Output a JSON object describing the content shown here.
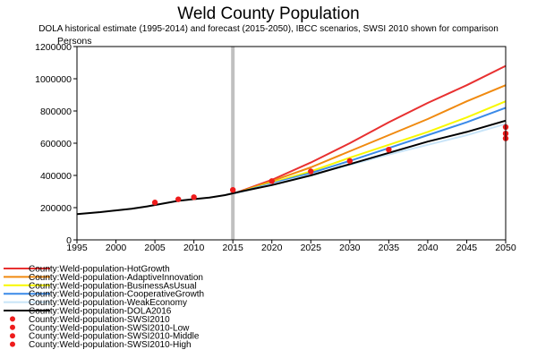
{
  "chart_data": {
    "type": "line",
    "title": "Weld County Population",
    "subtitle": "DOLA historical estimate (1995-2014) and forecast (2015-2050), IBCC scenarios, SWSI 2010 shown for comparison",
    "ylabel": "Persons",
    "xlabel": "",
    "xlim": [
      1995,
      2050
    ],
    "ylim": [
      0,
      1200000
    ],
    "x_ticks": [
      1995,
      2000,
      2005,
      2010,
      2015,
      2020,
      2025,
      2030,
      2035,
      2040,
      2045,
      2050
    ],
    "y_ticks": [
      0,
      200000,
      400000,
      600000,
      800000,
      1000000,
      1200000
    ],
    "x_tick_labels": [
      "1995",
      "2000",
      "2005",
      "2010",
      "2015",
      "2020",
      "2025",
      "2030",
      "2035",
      "2040",
      "2045",
      "2050"
    ],
    "y_tick_labels": [
      "0",
      "200000",
      "400000",
      "600000",
      "800000",
      "1000000",
      "1200000"
    ],
    "vertical_marker_x": 2015,
    "legend_position": "bottom-left",
    "series": [
      {
        "name": "County:Weld-population-HotGrowth",
        "kind": "line",
        "color": "#e83030",
        "x": [
          2015,
          2020,
          2025,
          2030,
          2035,
          2040,
          2045,
          2050
        ],
        "values": [
          285000,
          372000,
          480000,
          600000,
          730000,
          850000,
          960000,
          1080000
        ]
      },
      {
        "name": "County:Weld-population-AdaptiveInnovation",
        "kind": "line",
        "color": "#f08a10",
        "x": [
          2015,
          2020,
          2025,
          2030,
          2035,
          2040,
          2045,
          2050
        ],
        "values": [
          285000,
          365000,
          450000,
          550000,
          650000,
          750000,
          860000,
          960000
        ]
      },
      {
        "name": "County:Weld-population-BusinessAsUsual",
        "kind": "line",
        "color": "#f8f800",
        "x": [
          2015,
          2020,
          2025,
          2030,
          2035,
          2040,
          2045,
          2050
        ],
        "values": [
          285000,
          355000,
          425000,
          510000,
          590000,
          670000,
          760000,
          860000
        ]
      },
      {
        "name": "County:Weld-population-CooperativeGrowth",
        "kind": "line",
        "color": "#3a8ae8",
        "x": [
          2015,
          2020,
          2025,
          2030,
          2035,
          2040,
          2045,
          2050
        ],
        "values": [
          285000,
          350000,
          415000,
          490000,
          570000,
          650000,
          730000,
          820000
        ]
      },
      {
        "name": "County:Weld-population-WeakEconomy",
        "kind": "line",
        "color": "#c8e4f8",
        "x": [
          2015,
          2020,
          2025,
          2030,
          2035,
          2040,
          2045,
          2050
        ],
        "values": [
          285000,
          345000,
          405000,
          465000,
          530000,
          590000,
          650000,
          720000
        ]
      },
      {
        "name": "County:Weld-population-DOLA2016",
        "kind": "line",
        "color": "#000000",
        "x": [
          1995,
          1998,
          2000,
          2002,
          2004,
          2006,
          2008,
          2010,
          2012,
          2014,
          2016,
          2018,
          2020,
          2025,
          2030,
          2035,
          2040,
          2045,
          2050
        ],
        "values": [
          160000,
          172000,
          183000,
          193000,
          208000,
          225000,
          242000,
          253000,
          263000,
          278000,
          300000,
          320000,
          340000,
          400000,
          470000,
          540000,
          610000,
          670000,
          740000
        ]
      },
      {
        "name": "County:Weld-population-SWSI2010",
        "kind": "scatter",
        "color": "#ee1c1c",
        "x": [
          2005,
          2008,
          2010,
          2015,
          2020,
          2025,
          2030,
          2035
        ],
        "values": [
          232000,
          252000,
          265000,
          310000,
          365000,
          425000,
          490000,
          560000
        ]
      },
      {
        "name": "County:Weld-population-SWSI2010-Low",
        "kind": "scatter",
        "color": "#ee1c1c",
        "x": [
          2050
        ],
        "values": [
          630000
        ]
      },
      {
        "name": "County:Weld-population-SWSI2010-Middle",
        "kind": "scatter",
        "color": "#ee1c1c",
        "x": [
          2050
        ],
        "values": [
          660000
        ]
      },
      {
        "name": "County:Weld-population-SWSI2010-High",
        "kind": "scatter",
        "color": "#ee1c1c",
        "x": [
          2050
        ],
        "values": [
          700000
        ]
      }
    ]
  }
}
